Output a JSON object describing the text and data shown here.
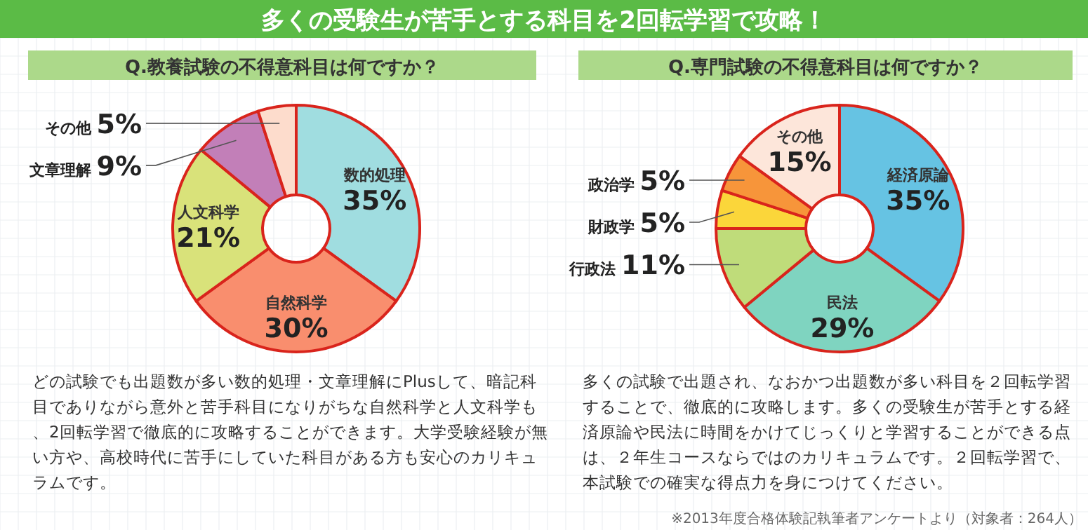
{
  "chart_data": [
    {
      "type": "other",
      "title": "多くの受験生が苦手とする科目を2回転学習で攻略！"
    },
    {
      "type": "donut",
      "title": "Q.教養試験の不得意科目は何ですか？",
      "categories": [
        "数的処理",
        "自然科学",
        "人文科学",
        "文章理解",
        "その他"
      ],
      "values": [
        35,
        30,
        21,
        9,
        5
      ],
      "value_labels": [
        "35%",
        "30%",
        "21%",
        "9%",
        "5%"
      ],
      "colors": [
        "#a0dde0",
        "#f98e6e",
        "#d9e27a",
        "#c27fb8",
        "#fddccc"
      ],
      "annotations": [
        "どの試験でも出題数が多い数的処理・文章理解にPlusして、暗記科目でありながら意外と苦手科目になりがちな自然科学と人文科学も、2回転学習で徹底的に攻略することができます。大学受験経験が無い方や、高校時代に苦手にしていた科目がある方も安心のカリキュラムです。"
      ]
    },
    {
      "type": "donut",
      "title": "Q.専門試験の不得意科目は何ですか？",
      "categories": [
        "経済原論",
        "民法",
        "行政法",
        "財政学",
        "政治学",
        "その他"
      ],
      "values": [
        35,
        29,
        11,
        5,
        5,
        15
      ],
      "value_labels": [
        "35%",
        "29%",
        "11%",
        "5%",
        "5%",
        "15%"
      ],
      "colors": [
        "#66c3e3",
        "#7fd4c0",
        "#bfdc7a",
        "#fbd63a",
        "#f7953a",
        "#fde6da"
      ],
      "annotations": [
        "多くの試験で出題され、なおかつ出題数が多い科目を２回転学習することで、徹底的に攻略します。多くの受験生が苦手とする経済原論や民法に時間をかけてじっくりと学習することができる点は、２年生コースならではのカリキュラムです。２回転学習で、本試験での確実な得点力を身につけてください。",
        "※2013年度合格体験記執筆者アンケートより（対象者：264人）"
      ]
    }
  ]
}
